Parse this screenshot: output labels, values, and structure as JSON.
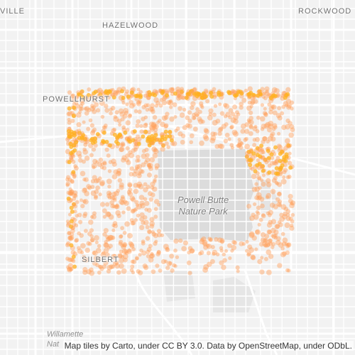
{
  "map": {
    "place_labels": {
      "ville": "VILLE",
      "hazelwood": "HAZELWOOD",
      "rockwood": "ROCKWOOD",
      "powellhurst": "POWELLHURST",
      "silbert": "SILBERT"
    },
    "park": {
      "line1": "Powell Butte",
      "line2": "Nature Park"
    },
    "water": {
      "line1": "Willamette",
      "line2": "Nat"
    },
    "attribution": "Map tiles by Carto, under CC BY 3.0. Data by OpenStreetMap, under ODbL.",
    "colors": {
      "background": "#f2f2f2",
      "street": "#ffffff",
      "park": "#dcdcdc",
      "point": "#ffa05a",
      "point_dense": "#ffb020"
    }
  }
}
